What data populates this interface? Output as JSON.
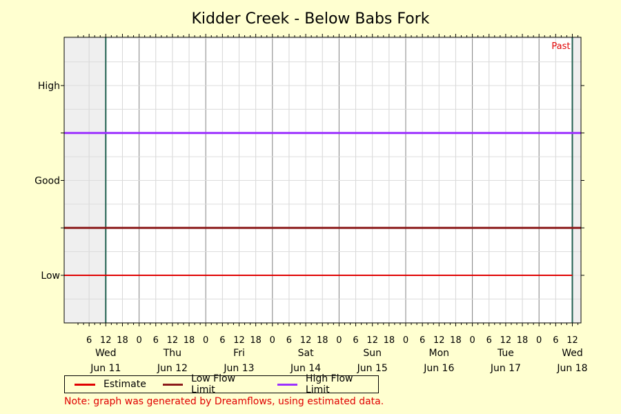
{
  "chart_data": {
    "type": "line",
    "title": "Kidder Creek - Below Babs Fork",
    "y_categories": [
      "Low",
      "Good",
      "High"
    ],
    "x_tick_hours": [
      "6",
      "12",
      "18",
      "0"
    ],
    "days": [
      {
        "weekday": "Wed",
        "date": "Jun 11"
      },
      {
        "weekday": "Thu",
        "date": "Jun 12"
      },
      {
        "weekday": "Fri",
        "date": "Jun 13"
      },
      {
        "weekday": "Sat",
        "date": "Jun 14"
      },
      {
        "weekday": "Sun",
        "date": "Jun 15"
      },
      {
        "weekday": "Mon",
        "date": "Jun 16"
      },
      {
        "weekday": "Tue",
        "date": "Jun 17"
      },
      {
        "weekday": "Wed",
        "date": "Jun 18"
      }
    ],
    "past_label": "Past",
    "series": [
      {
        "name": "Estimate",
        "color": "#e00000",
        "level": "Low",
        "x_start": "Jun 11 12:00",
        "x_end": "Jun 18 12:00"
      },
      {
        "name": "Low Flow Limit",
        "color": "#8b1a1a",
        "level": "Low/Good boundary"
      },
      {
        "name": "High Flow Limit",
        "color": "#9b30ff",
        "level": "Good/High boundary"
      }
    ],
    "x_range": [
      "Jun 11 03:00",
      "Jun 18 21:00"
    ],
    "grid": true
  },
  "legend": [
    {
      "label": "Estimate",
      "color": "#e00000"
    },
    {
      "label": "Low Flow Limit",
      "color": "#8b1a1a"
    },
    {
      "label": "High Flow Limit",
      "color": "#9b30ff"
    }
  ],
  "note": "Note: graph was generated by Dreamflows, using estimated data."
}
